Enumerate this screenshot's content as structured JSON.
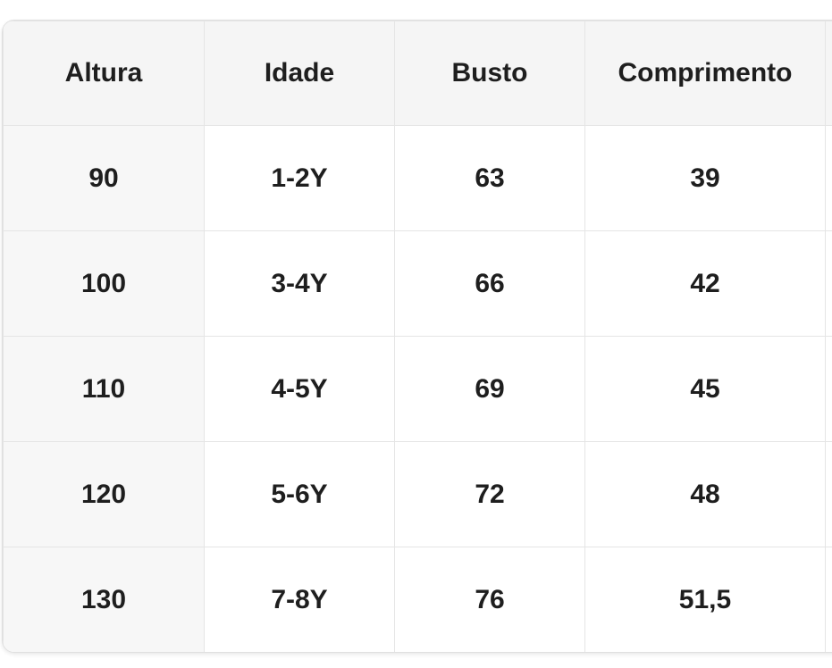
{
  "chart_data": {
    "type": "table",
    "columns": [
      "Altura",
      "Idade",
      "Busto",
      "Comprimento"
    ],
    "rows": [
      [
        "90",
        "1-2Y",
        "63",
        "39"
      ],
      [
        "100",
        "3-4Y",
        "66",
        "42"
      ],
      [
        "110",
        "4-5Y",
        "69",
        "45"
      ],
      [
        "120",
        "5-6Y",
        "72",
        "48"
      ],
      [
        "130",
        "7-8Y",
        "76",
        "51,5"
      ]
    ],
    "layout": {
      "header_row_shaded": true,
      "first_column_shaded": true,
      "grid": true,
      "partial_fifth_column_cut_off_right": true,
      "rounded_left_corners": true
    }
  },
  "colors": {
    "page_bg": "#ffffff",
    "header_bg": "#f5f5f5",
    "first_col_bg": "#f7f7f7",
    "cell_bg": "#ffffff",
    "grid_border": "#e5e5e5",
    "card_border": "#e0e0e0",
    "text": "#1e1e1e"
  }
}
